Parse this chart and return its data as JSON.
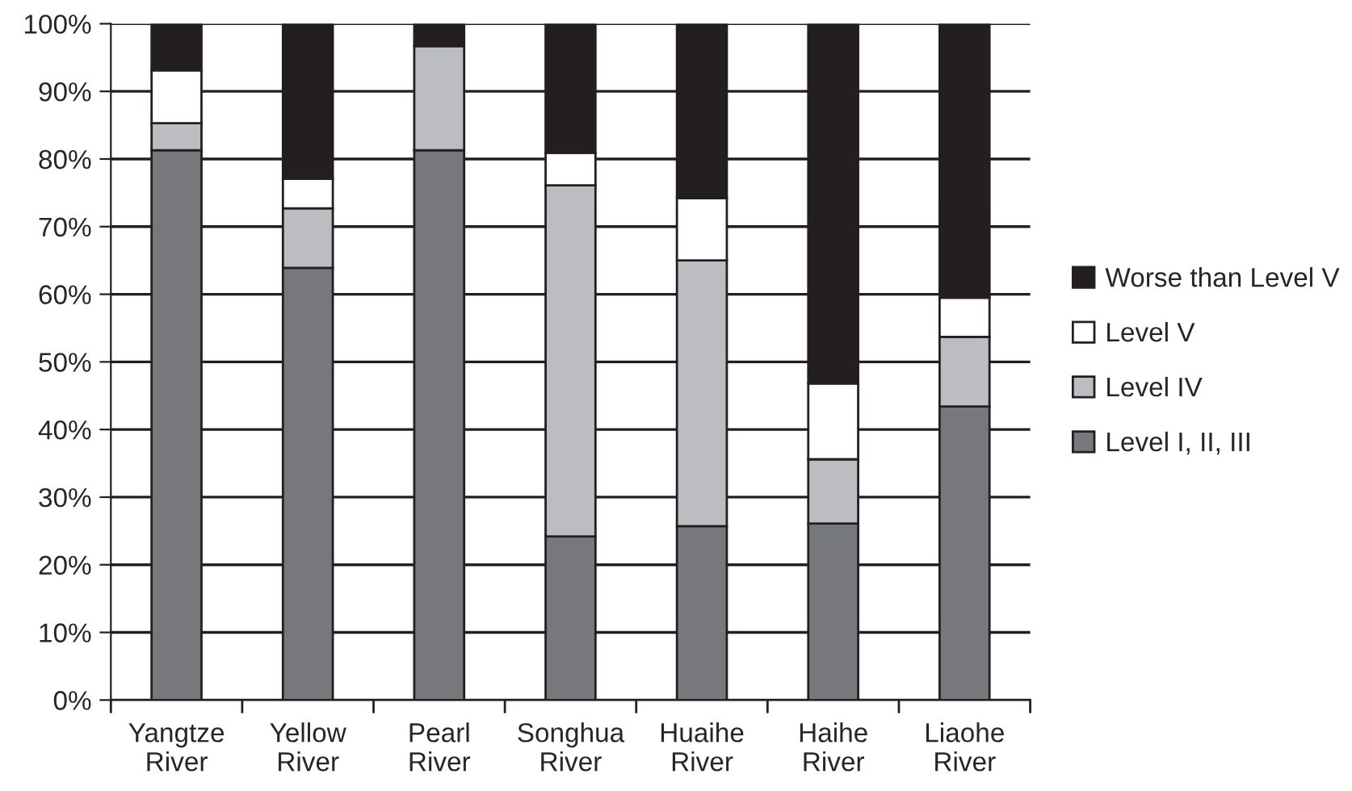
{
  "chart_data": {
    "type": "bar",
    "stacked": true,
    "categories": [
      "Yangtze\nRiver",
      "Yellow\nRiver",
      "Pearl\nRiver",
      "Songhua\nRiver",
      "Huaihe\nRiver",
      "Haihe\nRiver",
      "Liaohe\nRiver"
    ],
    "series": [
      {
        "name": "Level I, II, III",
        "color": "#77787c",
        "values": [
          81.3,
          63.9,
          81.3,
          24.2,
          25.7,
          26.1,
          43.4
        ]
      },
      {
        "name": "Level IV",
        "color": "#bcbdc0",
        "values": [
          4.0,
          8.8,
          15.4,
          51.9,
          39.3,
          9.5,
          10.3
        ]
      },
      {
        "name": "Level V",
        "color": "#ffffff",
        "values": [
          7.8,
          4.4,
          null,
          4.8,
          9.2,
          11.2,
          5.8
        ]
      },
      {
        "name": "Worse than Level V",
        "color": "#231f20",
        "values": [
          6.9,
          22.9,
          3.3,
          19.1,
          25.8,
          53.2,
          40.5
        ]
      }
    ],
    "ylim": [
      0,
      100
    ],
    "yticks": [
      {
        "value": 0,
        "label": "0%"
      },
      {
        "value": 10,
        "label": "10%"
      },
      {
        "value": 20,
        "label": "20%"
      },
      {
        "value": 30,
        "label": "30%"
      },
      {
        "value": 40,
        "label": "40%"
      },
      {
        "value": 50,
        "label": "50%"
      },
      {
        "value": 60,
        "label": "60%"
      },
      {
        "value": 70,
        "label": "70%"
      },
      {
        "value": 80,
        "label": "80%"
      },
      {
        "value": 90,
        "label": "90%"
      },
      {
        "value": 100,
        "label": "100%"
      }
    ],
    "grid": "y",
    "legend": "right"
  }
}
